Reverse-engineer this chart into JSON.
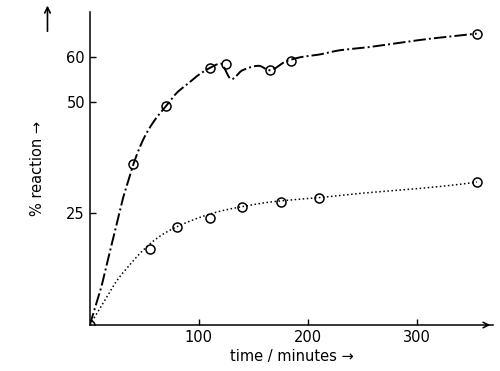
{
  "xlabel": "time / minutes →",
  "ylabel_line1": "↑",
  "ylabel_line2": "% reaction →",
  "xlim": [
    0,
    370
  ],
  "ylim": [
    0,
    70
  ],
  "yticks": [
    25,
    50,
    60
  ],
  "xticks": [
    100,
    200,
    300
  ],
  "upper_curve": {
    "x": [
      0,
      5,
      10,
      15,
      20,
      25,
      30,
      35,
      40,
      50,
      60,
      70,
      80,
      90,
      100,
      110,
      120,
      130,
      140,
      155,
      165,
      180,
      195,
      210,
      230,
      250,
      280,
      310,
      340,
      355
    ],
    "y": [
      0,
      4,
      8,
      13,
      18,
      23,
      28,
      32,
      36,
      42,
      46,
      49,
      52,
      54,
      56,
      57.5,
      58.5,
      55,
      57,
      58,
      57,
      59,
      60,
      60.5,
      61.5,
      62,
      63,
      64,
      64.8,
      65.2
    ],
    "marker_x": [
      0,
      40,
      70,
      110,
      125,
      165,
      185,
      355
    ],
    "marker_y": [
      0,
      36,
      49,
      57.5,
      58.5,
      57,
      59,
      65.2
    ],
    "color": "#000000",
    "linewidth": 1.4,
    "markersize": 6.5
  },
  "lower_curve": {
    "x": [
      0,
      5,
      10,
      15,
      25,
      35,
      50,
      65,
      80,
      100,
      120,
      140,
      165,
      185,
      210,
      250,
      300,
      340,
      355
    ],
    "y": [
      0,
      2,
      4,
      6,
      10,
      13,
      17,
      20,
      22,
      24,
      25.5,
      26.5,
      27.5,
      28,
      28.5,
      29.5,
      30.5,
      31.5,
      32
    ],
    "marker_x": [
      55,
      80,
      110,
      140,
      175,
      210,
      355
    ],
    "marker_y": [
      17,
      22,
      24,
      26.5,
      27.5,
      28.5,
      32
    ],
    "color": "#000000",
    "linewidth": 1.1,
    "markersize": 6.5
  },
  "background_color": "#ffffff"
}
